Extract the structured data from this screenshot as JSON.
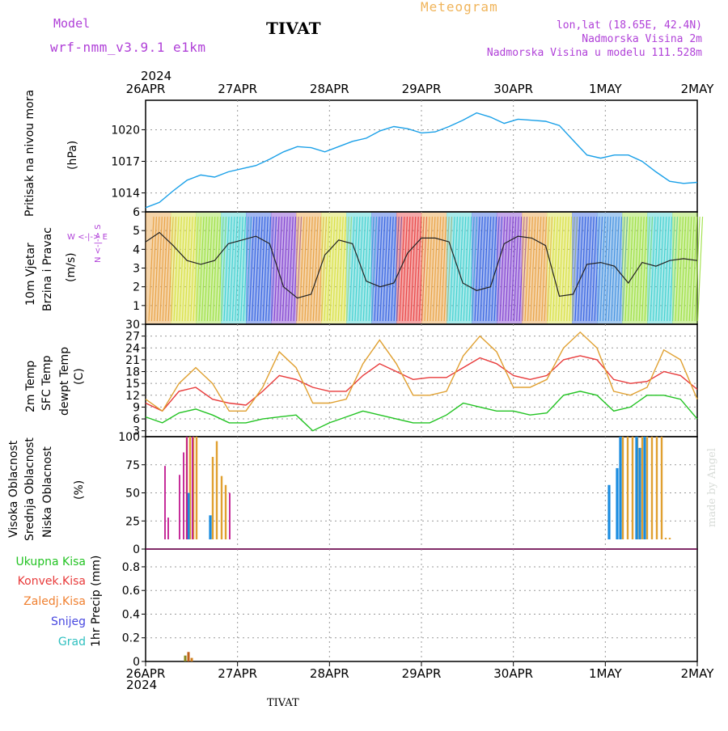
{
  "header": {
    "model_label": "Model",
    "model_run": "wrf-nmm_v3.9.1  e1km",
    "title": "TIVAT",
    "meteogram_label": "Meteogram",
    "coords": "lon,lat (18.65E, 42.4N)",
    "altitude": "Nadmorska Visina 2m",
    "model_altitude": "Nadmorska Visina u modelu 111.528m",
    "year_top": "2024",
    "year_bottom": "2024",
    "footer": "TIVAT",
    "credit": "made by Angel"
  },
  "colors": {
    "pressure": "#1aa0e8",
    "temp2m": "#e83a3a",
    "sfc_temp": "#e0a030",
    "dewpt": "#22c322",
    "cloud_high": "#1a8ce0",
    "cloud_mid": "#e0a030",
    "cloud_low": "#c01890",
    "purple": "#b040d8"
  },
  "labels": {
    "pressure_name": "Pritisak na nivou mora",
    "pressure_unit": "(hPa)",
    "wind_name1": "10m  Vjetar",
    "wind_name2": "Brzina i Pravac",
    "wind_unit": "(m/s)",
    "wind_compass_n": "N <-|-> S",
    "wind_compass_w": "W <-|-> E",
    "temp_name1": "2m  Temp",
    "temp_name2": "SFC Temp",
    "temp_name3": "dewpt Temp",
    "temp_unit": "(C)",
    "cloud_name1": "Visoka Oblacnost",
    "cloud_name2": "Srednja Oblacnost",
    "cloud_name3": "Niska  Oblacnost",
    "cloud_unit": "(%)",
    "precip_axis": "1hr Precip (mm)",
    "precip_legend": [
      "Ukupna  Kisa",
      "Konvek.Kisa",
      "Zaledj.Kisa",
      "Snijeg",
      "Grad"
    ]
  },
  "chart_data": [
    {
      "type": "line",
      "panel": "pressure",
      "x_ticks": [
        "26APR",
        "27APR",
        "28APR",
        "29APR",
        "30APR",
        "1MAY",
        "2MAY"
      ],
      "ylabel": "(hPa)",
      "y_ticks": [
        1014,
        1017,
        1020
      ],
      "ylim": [
        1012.2,
        1022.8
      ],
      "grid": true,
      "series": [
        {
          "values": [
            1012.6,
            1013.1,
            1014.2,
            1015.2,
            1015.7,
            1015.5,
            1016.0,
            1016.3,
            1016.6,
            1017.2,
            1017.9,
            1018.4,
            1018.3,
            1017.9,
            1018.4,
            1018.9,
            1019.2,
            1019.9,
            1020.3,
            1020.1,
            1019.7,
            1019.8,
            1020.3,
            1020.9,
            1021.6,
            1021.2,
            1020.6,
            1021.0,
            1020.9,
            1020.8,
            1020.4,
            1019.0,
            1017.6,
            1017.3,
            1017.6,
            1017.6,
            1017.0,
            1016.0,
            1015.1,
            1014.9,
            1015.0
          ]
        }
      ]
    },
    {
      "type": "line",
      "panel": "wind",
      "ylabel": "(m/s)",
      "y_ticks": [
        1,
        2,
        3,
        4,
        5,
        6
      ],
      "ylim": [
        0,
        6
      ],
      "grid": true,
      "series": [
        {
          "values": [
            4.4,
            4.9,
            4.2,
            3.4,
            3.2,
            3.4,
            4.3,
            4.5,
            4.7,
            4.3,
            2.0,
            1.4,
            1.6,
            3.7,
            4.5,
            4.3,
            2.3,
            2.0,
            2.2,
            3.8,
            4.6,
            4.6,
            4.4,
            2.2,
            1.8,
            2.0,
            4.3,
            4.7,
            4.6,
            4.2,
            1.5,
            1.6,
            3.2,
            3.3,
            3.1,
            2.2,
            3.3,
            3.1,
            3.4,
            3.5,
            3.4
          ]
        }
      ]
    },
    {
      "type": "line",
      "panel": "temperature",
      "ylabel": "(C)",
      "y_ticks": [
        3,
        6,
        9,
        12,
        15,
        18,
        21,
        24,
        27,
        30
      ],
      "ylim": [
        1.5,
        30
      ],
      "grid": true,
      "series": [
        {
          "values": [
            10.0,
            8.0,
            13.0,
            14.0,
            11.0,
            10.0,
            9.5,
            13.0,
            17.0,
            16.0,
            14.0,
            13.0,
            13.0,
            17.0,
            20.0,
            18.0,
            16.0,
            16.5,
            16.5,
            19.0,
            21.5,
            20.0,
            17.0,
            16.0,
            17.0,
            21.0,
            22.0,
            21.0,
            16.0,
            15.0,
            15.5,
            18.0,
            17.0,
            13.5
          ]
        },
        {
          "values": [
            11.0,
            8.0,
            15.0,
            19.0,
            15.0,
            8.0,
            8.0,
            14.0,
            23.0,
            19.0,
            10.0,
            10.0,
            11.0,
            20.0,
            26.0,
            20.0,
            12.0,
            12.0,
            13.0,
            22.0,
            27.0,
            23.0,
            14.0,
            14.0,
            16.0,
            24.0,
            28.0,
            24.0,
            13.0,
            12.0,
            14.0,
            23.5,
            21.0,
            11.0
          ]
        },
        {
          "values": [
            6.5,
            5.0,
            7.5,
            8.5,
            7.0,
            5.0,
            5.0,
            6.0,
            6.5,
            7.0,
            3.0,
            5.0,
            6.5,
            8.0,
            7.0,
            6.0,
            5.0,
            5.0,
            7.0,
            10.0,
            9.0,
            8.0,
            8.0,
            7.0,
            7.5,
            12.0,
            13.0,
            12.0,
            8.0,
            9.0,
            12.0,
            12.0,
            11.0,
            6.0
          ]
        }
      ]
    },
    {
      "type": "bar",
      "panel": "cloud",
      "ylabel": "(%)",
      "y_ticks": [
        0,
        25,
        50,
        75,
        100
      ],
      "ylim": [
        0,
        100
      ],
      "series": [
        {
          "values": [
            5,
            50,
            30,
            5,
            57,
            72,
            100,
            100,
            90,
            100
          ]
        },
        {
          "values": [
            100,
            100,
            100,
            100,
            82,
            96,
            65,
            57,
            100,
            100,
            100,
            100,
            100,
            100,
            100,
            100,
            100,
            10,
            10
          ]
        },
        {
          "values": [
            74,
            28,
            66,
            86,
            100,
            100,
            50
          ]
        }
      ]
    },
    {
      "type": "bar",
      "panel": "precipitation",
      "ylabel": "1hr Precip (mm)",
      "y_ticks": [
        0,
        0.2,
        0.4,
        0.6,
        0.8
      ],
      "ylim": [
        0,
        0.95
      ],
      "series": [
        {
          "values": [
            0.05,
            0.08,
            0.03
          ]
        }
      ]
    }
  ]
}
